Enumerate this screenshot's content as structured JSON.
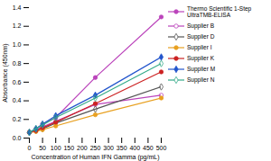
{
  "chart_data": {
    "type": "line",
    "xlabel": "Concentration of Human IFN Gamma (pg/mL)",
    "ylabel": "Absorbance (450nm)",
    "x": [
      0,
      25,
      50,
      100,
      250,
      500
    ],
    "series": [
      {
        "name": "Thermo Scientific 1-Step\nUltraTMB-ELISA",
        "color": "#bb44bb",
        "marker": "circle",
        "values": [
          0.06,
          0.1,
          0.15,
          0.22,
          0.65,
          1.3
        ]
      },
      {
        "name": "Supplier B",
        "color": "#bb44bb",
        "marker": "circle-open",
        "values": [
          0.06,
          0.09,
          0.12,
          0.18,
          0.36,
          0.46
        ]
      },
      {
        "name": "Supplier D",
        "color": "#555555",
        "marker": "diamond-open",
        "values": [
          0.06,
          0.08,
          0.1,
          0.16,
          0.31,
          0.55
        ]
      },
      {
        "name": "Supplier I",
        "color": "#e8a020",
        "marker": "circle",
        "values": [
          0.06,
          0.07,
          0.09,
          0.13,
          0.25,
          0.43
        ]
      },
      {
        "name": "Supplier K",
        "color": "#cc2222",
        "marker": "circle",
        "values": [
          0.06,
          0.08,
          0.11,
          0.17,
          0.37,
          0.71
        ]
      },
      {
        "name": "Supplier M",
        "color": "#2255cc",
        "marker": "diamond",
        "values": [
          0.06,
          0.1,
          0.15,
          0.24,
          0.46,
          0.87
        ]
      },
      {
        "name": "Supplier N",
        "color": "#33aa88",
        "marker": "diamond-open",
        "values": [
          0.06,
          0.1,
          0.14,
          0.22,
          0.43,
          0.8
        ]
      }
    ],
    "xlim": [
      0,
      500
    ],
    "ylim": [
      0,
      1.4
    ],
    "xticks": [
      0,
      50,
      100,
      150,
      200,
      250,
      300,
      350,
      400,
      450,
      500
    ],
    "yticks": [
      {
        "value": 0,
        "label": "0.0"
      },
      0.2,
      0.4,
      0.6,
      0.8,
      {
        "value": 1,
        "label": "1.0"
      },
      1.2,
      1.4
    ],
    "grid": false,
    "legend": "right"
  }
}
